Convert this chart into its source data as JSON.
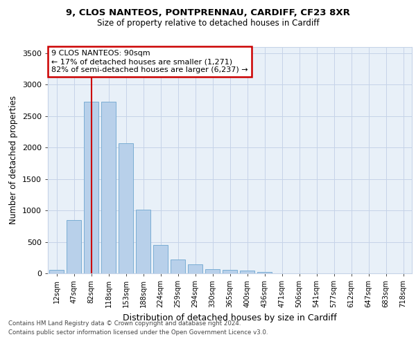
{
  "title_line1": "9, CLOS NANTEOS, PONTPRENNAU, CARDIFF, CF23 8XR",
  "title_line2": "Size of property relative to detached houses in Cardiff",
  "xlabel": "Distribution of detached houses by size in Cardiff",
  "ylabel": "Number of detached properties",
  "categories": [
    "12sqm",
    "47sqm",
    "82sqm",
    "118sqm",
    "153sqm",
    "188sqm",
    "224sqm",
    "259sqm",
    "294sqm",
    "330sqm",
    "365sqm",
    "400sqm",
    "436sqm",
    "471sqm",
    "506sqm",
    "541sqm",
    "577sqm",
    "612sqm",
    "647sqm",
    "683sqm",
    "718sqm"
  ],
  "values": [
    60,
    850,
    2730,
    2730,
    2070,
    1010,
    455,
    220,
    145,
    65,
    55,
    40,
    25,
    0,
    0,
    0,
    0,
    0,
    0,
    0,
    0
  ],
  "bar_color": "#b8d0ea",
  "bar_edge_color": "#7aadd4",
  "vline_x": 2,
  "vline_color": "#cc0000",
  "annotation_text": "9 CLOS NANTEOS: 90sqm\n← 17% of detached houses are smaller (1,271)\n82% of semi-detached houses are larger (6,237) →",
  "annotation_box_color": "#ffffff",
  "annotation_box_edge_color": "#cc0000",
  "ylim": [
    0,
    3600
  ],
  "yticks": [
    0,
    500,
    1000,
    1500,
    2000,
    2500,
    3000,
    3500
  ],
  "background_color": "#e8f0f8",
  "footer_line1": "Contains HM Land Registry data © Crown copyright and database right 2024.",
  "footer_line2": "Contains public sector information licensed under the Open Government Licence v3.0."
}
